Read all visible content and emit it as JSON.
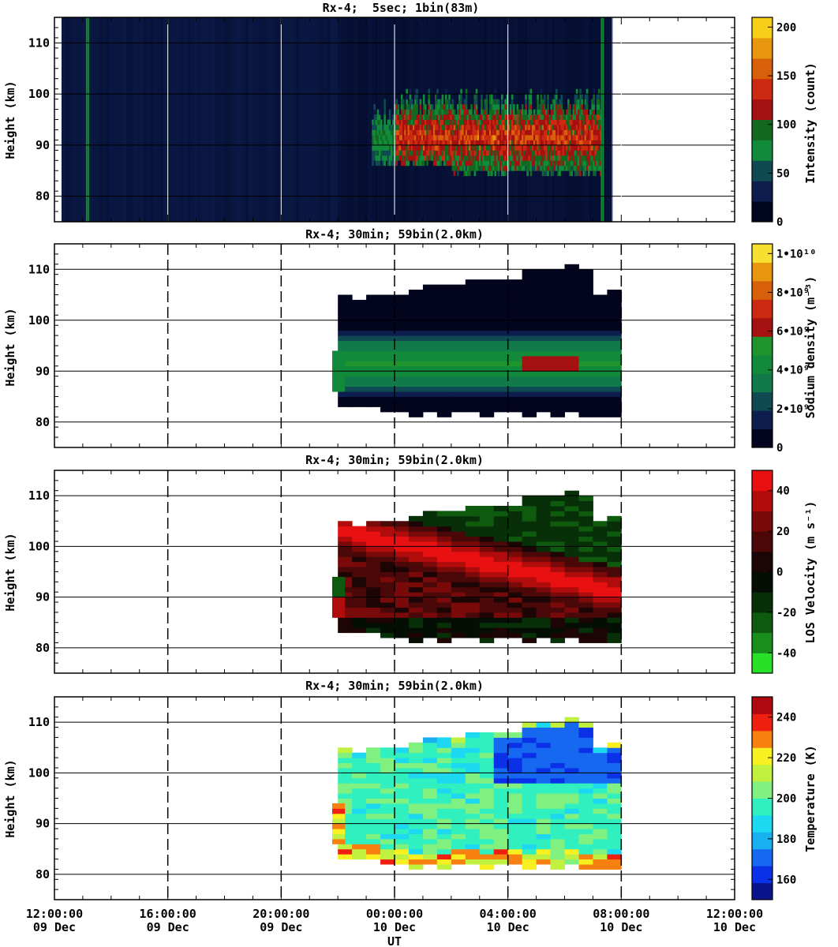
{
  "chart_data": [
    {
      "type": "heatmap",
      "title": "Rx-4;  5sec; 1bin(83m)",
      "ylabel": "Height (km)",
      "ylim": [
        75,
        115
      ],
      "y_ticks": [
        "80",
        "90",
        "100",
        "110"
      ],
      "colorbar": {
        "label": "Intensity (count)",
        "range": [
          0,
          210
        ],
        "tick_labels": [
          "0",
          "50",
          "100",
          "150",
          "200"
        ],
        "tick_values": [
          0,
          50,
          100,
          150,
          200
        ]
      },
      "data_window_utc": [
        "2024-12-09T12:15",
        "2024-12-10T07:40"
      ],
      "observations": [
        {
          "time": "2024-12-09T12:15",
          "note": "data start"
        },
        {
          "time": "2024-12-09T13:10",
          "note": "bright vertical streak (~100 counts)"
        },
        {
          "time": "2024-12-09T23:10",
          "note": "Na layer signal begins (~88-100 km)"
        },
        {
          "time": "2024-12-10T07:20",
          "note": "bright vertical streak (~100 counts)"
        },
        {
          "time": "2024-12-10T07:40",
          "note": "data end"
        }
      ]
    },
    {
      "type": "heatmap",
      "title": "Rx-4; 30min; 59bin(2.0km)",
      "ylabel": "Height (km)",
      "ylim": [
        75,
        115
      ],
      "y_ticks": [
        "80",
        "90",
        "100",
        "110"
      ],
      "colorbar": {
        "label": "Sodium density (m⁻³)",
        "range": [
          0,
          10500000000.0
        ],
        "tick_labels": [
          "0",
          "2•10⁹",
          "4•10⁹",
          "6•10⁹",
          "8•10⁹",
          "1•10¹⁰"
        ],
        "tick_values": [
          0,
          2000000000.0,
          4000000000.0,
          6000000000.0,
          8000000000.0,
          10000000000.0
        ]
      },
      "layer_bottom_km": 83,
      "layer_top_km": 107,
      "peak_km": 91,
      "peak_density": 6500000000.0
    },
    {
      "type": "heatmap",
      "title": "Rx-4; 30min; 59bin(2.0km)",
      "ylabel": "Height (km)",
      "ylim": [
        75,
        115
      ],
      "y_ticks": [
        "80",
        "90",
        "100",
        "110"
      ],
      "colorbar": {
        "label": "LOS Velocity (m s⁻¹)",
        "range": [
          -50,
          50
        ],
        "tick_labels": [
          "-40",
          "-20",
          "0",
          "20",
          "40"
        ],
        "tick_values": [
          -40,
          -20,
          0,
          20,
          40
        ]
      },
      "feature": "downward-sloping band of +40 m/s from ~100 km at 00:00 UT to ~92 km at 06:00 UT"
    },
    {
      "type": "heatmap",
      "title": "Rx-4; 30min; 59bin(2.0km)",
      "ylabel": "Height (km)",
      "xlabel": "UT",
      "ylim": [
        75,
        115
      ],
      "y_ticks": [
        "80",
        "90",
        "100",
        "110"
      ],
      "colorbar": {
        "label": "Temperature (K)",
        "range": [
          150,
          250
        ],
        "tick_labels": [
          "160",
          "180",
          "200",
          "220",
          "240"
        ],
        "tick_values": [
          160,
          180,
          200,
          220,
          240
        ]
      },
      "feature": "cold (160-170 K) region 98-104 km after 03:00 UT, warm (210-240 K) near layer bottom"
    }
  ],
  "x_axis": {
    "label": "UT",
    "range_utc": [
      "2024-12-09T12:00",
      "2024-12-10T12:00"
    ],
    "tick_times": [
      "12:00:00",
      "16:00:00",
      "20:00:00",
      "00:00:00",
      "04:00:00",
      "08:00:00",
      "12:00:00"
    ],
    "tick_dates": [
      "09 Dec",
      "09 Dec",
      "09 Dec",
      "10 Dec",
      "10 Dec",
      "10 Dec",
      "10 Dec"
    ]
  },
  "colors": {
    "intensity": [
      "#000620",
      "#0d1d4d",
      "#0f4a52",
      "#128a3c",
      "#12691f",
      "#a51010",
      "#cc2a10",
      "#d8600a",
      "#e8960e",
      "#f8cf18"
    ],
    "sodium": [
      "#03051f",
      "#0d1d4d",
      "#0f4a52",
      "#127a4a",
      "#128a3c",
      "#20942c",
      "#a51010",
      "#cc2a10",
      "#d8600a",
      "#e8960e",
      "#f8e030"
    ],
    "velocity_neg": [
      "#28e028",
      "#1a8e1a",
      "#0e5a0e",
      "#083008",
      "#050e05"
    ],
    "velocity_pos": [
      "#1e0505",
      "#4a0808",
      "#7a0a0a",
      "#b00c0c",
      "#e81010"
    ],
    "temperature": [
      "#0a158c",
      "#0a30e8",
      "#1668f0",
      "#18b0f0",
      "#1cd8f0",
      "#30f0c0",
      "#80f080",
      "#c0f040",
      "#f8f020",
      "#f88010",
      "#f02010",
      "#b00810"
    ]
  }
}
